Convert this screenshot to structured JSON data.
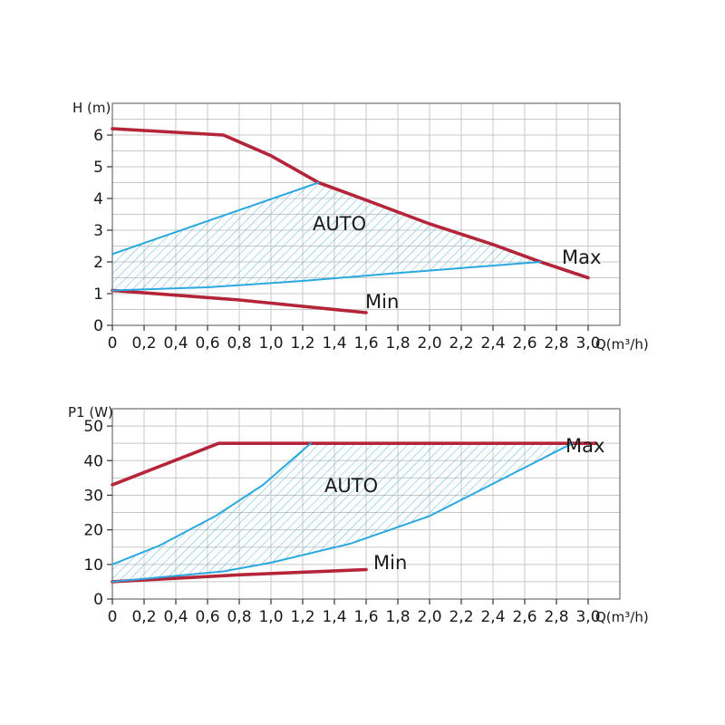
{
  "chart_data": [
    {
      "type": "line",
      "ylabel": "H (m)",
      "xlabel": "Q(m³/h)",
      "xlim": [
        0,
        3.2
      ],
      "ylim": [
        0,
        7
      ],
      "grid": true,
      "xticks": [
        0,
        0.2,
        0.4,
        0.6,
        0.8,
        1.0,
        1.2,
        1.4,
        1.6,
        1.8,
        2.0,
        2.2,
        2.4,
        2.6,
        2.8,
        3.0
      ],
      "xtick_labels": [
        "0",
        "0,2",
        "0,4",
        "0,6",
        "0,8",
        "1,0",
        "1,2",
        "1,4",
        "1,6",
        "1,8",
        "2,0",
        "2,2",
        "2,4",
        "2,6",
        "2,8",
        "3,0"
      ],
      "yticks": [
        0,
        1,
        2,
        3,
        4,
        5,
        6
      ],
      "ytick_labels": [
        "0",
        "1",
        "2",
        "3",
        "4",
        "5",
        "6"
      ],
      "colors": {
        "max_min": "#b5253a",
        "auto": "#2aa8df"
      },
      "series": [
        {
          "name": "Max",
          "kind": "max",
          "points": [
            [
              0,
              6.2
            ],
            [
              0.7,
              6.0
            ],
            [
              1.0,
              5.35
            ],
            [
              1.3,
              4.5
            ],
            [
              1.6,
              3.95
            ],
            [
              2.0,
              3.2
            ],
            [
              2.4,
              2.55
            ],
            [
              2.7,
              2.0
            ],
            [
              3.0,
              1.5
            ]
          ]
        },
        {
          "name": "Min",
          "kind": "min",
          "points": [
            [
              0,
              1.1
            ],
            [
              0.8,
              0.8
            ],
            [
              1.6,
              0.4
            ]
          ]
        },
        {
          "name": "",
          "kind": "auto-upper",
          "points": [
            [
              0,
              2.25
            ],
            [
              1.3,
              4.5
            ]
          ]
        },
        {
          "name": "",
          "kind": "auto-lower",
          "points": [
            [
              0,
              1.1
            ],
            [
              0.6,
              1.2
            ],
            [
              1.2,
              1.4
            ],
            [
              1.8,
              1.65
            ],
            [
              2.7,
              2.0
            ]
          ]
        }
      ],
      "annotations": {
        "auto": "AUTO",
        "max": "Max",
        "min": "Min"
      }
    },
    {
      "type": "line",
      "ylabel": "P1 (W)",
      "xlabel": "Q(m³/h)",
      "xlim": [
        0,
        3.2
      ],
      "ylim": [
        0,
        55
      ],
      "grid": true,
      "xticks": [
        0,
        0.2,
        0.4,
        0.6,
        0.8,
        1.0,
        1.2,
        1.4,
        1.6,
        1.8,
        2.0,
        2.2,
        2.4,
        2.6,
        2.8,
        3.0
      ],
      "xtick_labels": [
        "0",
        "0,2",
        "0,4",
        "0,6",
        "0,8",
        "1,0",
        "1,2",
        "1,4",
        "1,6",
        "1,8",
        "2,0",
        "2,2",
        "2,4",
        "2,6",
        "2,8",
        "3,0"
      ],
      "yticks": [
        0,
        10,
        20,
        30,
        40,
        50
      ],
      "ytick_labels": [
        "0",
        "10",
        "20",
        "30",
        "40",
        "50"
      ],
      "colors": {
        "max_min": "#b5253a",
        "auto": "#2aa8df"
      },
      "series": [
        {
          "name": "Max",
          "kind": "max",
          "points": [
            [
              0,
              33
            ],
            [
              0.67,
              45
            ],
            [
              3.05,
              45
            ]
          ]
        },
        {
          "name": "Min",
          "kind": "min",
          "points": [
            [
              0,
              5
            ],
            [
              0.8,
              7
            ],
            [
              1.6,
              8.5
            ]
          ]
        },
        {
          "name": "",
          "kind": "auto-upper",
          "points": [
            [
              0,
              10
            ],
            [
              0.3,
              15.5
            ],
            [
              0.65,
              24
            ],
            [
              0.95,
              33
            ],
            [
              1.25,
              45
            ]
          ]
        },
        {
          "name": "",
          "kind": "auto-lower",
          "points": [
            [
              0,
              5
            ],
            [
              0.7,
              8
            ],
            [
              1.0,
              10.5
            ],
            [
              1.5,
              16
            ],
            [
              2.0,
              24
            ],
            [
              2.9,
              45
            ]
          ]
        }
      ],
      "annotations": {
        "auto": "AUTO",
        "max": "Max",
        "min": "Min"
      }
    }
  ]
}
